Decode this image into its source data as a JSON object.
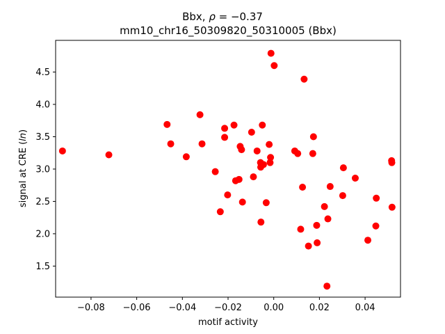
{
  "chart_data": {
    "type": "scatter",
    "title": {
      "line1_prefix": "Bbx, ",
      "line1_rho": "ρ",
      "line1_value": " = −0.37",
      "line2": "mm10_chr16_50309820_50310005 (Bbx)"
    },
    "xlabel": "motif activity",
    "ylabel_prefix": "signal at CRE (",
    "ylabel_italic": "ln",
    "ylabel_suffix": ")",
    "xlim": [
      -0.0955,
      0.0555
    ],
    "ylim": [
      1.02,
      4.99
    ],
    "xticks": [
      {
        "value": -0.08,
        "label": "−0.08"
      },
      {
        "value": -0.06,
        "label": "−0.06"
      },
      {
        "value": -0.04,
        "label": "−0.04"
      },
      {
        "value": -0.02,
        "label": "−0.02"
      },
      {
        "value": 0.0,
        "label": "0.00"
      },
      {
        "value": 0.02,
        "label": "0.02"
      },
      {
        "value": 0.04,
        "label": "0.04"
      }
    ],
    "yticks": [
      {
        "value": 1.5,
        "label": "1.5"
      },
      {
        "value": 2.0,
        "label": "2.0"
      },
      {
        "value": 2.5,
        "label": "2.5"
      },
      {
        "value": 3.0,
        "label": "3.0"
      },
      {
        "value": 3.5,
        "label": "3.5"
      },
      {
        "value": 4.0,
        "label": "4.0"
      },
      {
        "value": 4.5,
        "label": "4.5"
      }
    ],
    "grid": false,
    "legend": "none",
    "marker_color": "#ff0000",
    "points": [
      {
        "x": -0.0925,
        "y": 3.28
      },
      {
        "x": -0.0722,
        "y": 3.22
      },
      {
        "x": -0.0467,
        "y": 3.69
      },
      {
        "x": -0.0451,
        "y": 3.39
      },
      {
        "x": -0.0383,
        "y": 3.19
      },
      {
        "x": -0.0323,
        "y": 3.84
      },
      {
        "x": -0.0314,
        "y": 3.39
      },
      {
        "x": -0.0256,
        "y": 2.96
      },
      {
        "x": -0.0234,
        "y": 2.34
      },
      {
        "x": -0.0215,
        "y": 3.63
      },
      {
        "x": -0.0215,
        "y": 3.49
      },
      {
        "x": -0.0202,
        "y": 2.6
      },
      {
        "x": -0.0174,
        "y": 3.68
      },
      {
        "x": -0.0167,
        "y": 2.82
      },
      {
        "x": -0.0152,
        "y": 2.84
      },
      {
        "x": -0.0147,
        "y": 3.35
      },
      {
        "x": -0.0141,
        "y": 3.3
      },
      {
        "x": -0.0137,
        "y": 2.49
      },
      {
        "x": -0.0097,
        "y": 3.57
      },
      {
        "x": -0.0089,
        "y": 2.88
      },
      {
        "x": -0.0073,
        "y": 3.28
      },
      {
        "x": -0.0058,
        "y": 3.1
      },
      {
        "x": -0.0057,
        "y": 3.03
      },
      {
        "x": -0.0056,
        "y": 2.18
      },
      {
        "x": -0.005,
        "y": 3.68
      },
      {
        "x": -0.0045,
        "y": 3.07
      },
      {
        "x": -0.0033,
        "y": 2.48
      },
      {
        "x": -0.002,
        "y": 3.38
      },
      {
        "x": -0.0016,
        "y": 3.1
      },
      {
        "x": -0.0014,
        "y": 3.18
      },
      {
        "x": -0.0012,
        "y": 4.79
      },
      {
        "x": 0.0002,
        "y": 4.6
      },
      {
        "x": 0.0092,
        "y": 3.28
      },
      {
        "x": 0.0105,
        "y": 3.24
      },
      {
        "x": 0.0118,
        "y": 2.07
      },
      {
        "x": 0.0126,
        "y": 2.72
      },
      {
        "x": 0.0133,
        "y": 4.39
      },
      {
        "x": 0.0152,
        "y": 1.81
      },
      {
        "x": 0.0171,
        "y": 3.24
      },
      {
        "x": 0.0174,
        "y": 3.5
      },
      {
        "x": 0.0188,
        "y": 2.13
      },
      {
        "x": 0.019,
        "y": 1.86
      },
      {
        "x": 0.0222,
        "y": 2.42
      },
      {
        "x": 0.0233,
        "y": 1.19
      },
      {
        "x": 0.0237,
        "y": 2.23
      },
      {
        "x": 0.0247,
        "y": 2.73
      },
      {
        "x": 0.0302,
        "y": 2.59
      },
      {
        "x": 0.0305,
        "y": 3.02
      },
      {
        "x": 0.0357,
        "y": 2.86
      },
      {
        "x": 0.0412,
        "y": 1.9
      },
      {
        "x": 0.0447,
        "y": 2.12
      },
      {
        "x": 0.0449,
        "y": 2.55
      },
      {
        "x": 0.0516,
        "y": 3.13
      },
      {
        "x": 0.0517,
        "y": 3.1
      },
      {
        "x": 0.0518,
        "y": 2.41
      }
    ]
  }
}
